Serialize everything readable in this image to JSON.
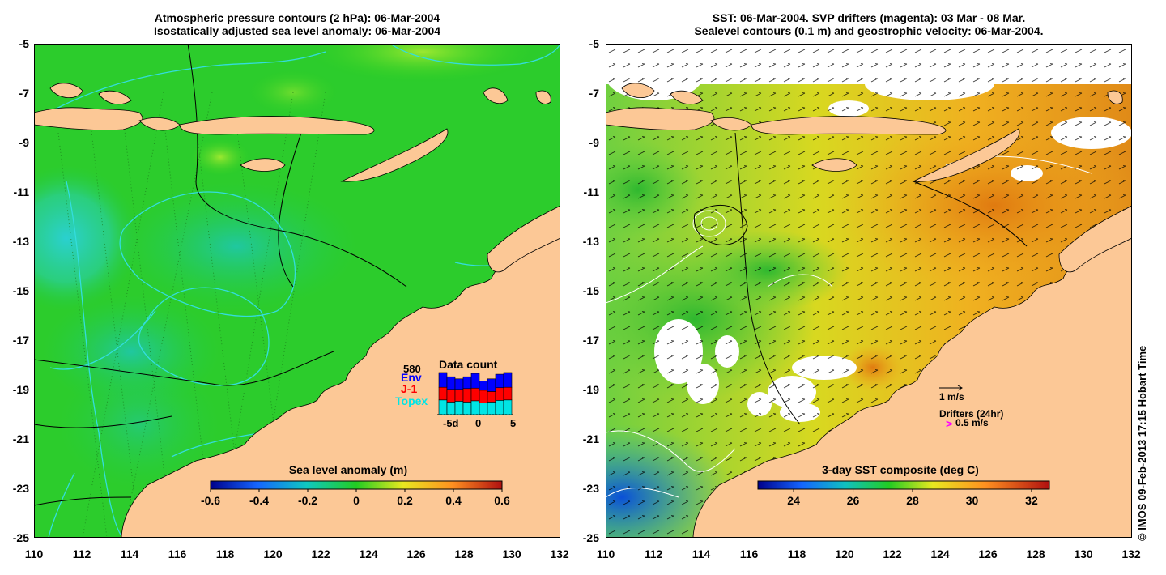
{
  "left_panel": {
    "title_line1": "Atmospheric pressure contours (2 hPa): 06-Mar-2004",
    "title_line2": "Isostatically adjusted sea level anomaly: 06-Mar-2004",
    "colorbar": {
      "label": "Sea level anomaly (m)",
      "ticks": [
        "-0.6",
        "-0.4",
        "-0.2",
        "0",
        "0.2",
        "0.4",
        "0.6"
      ]
    },
    "data_count": {
      "title": "Data count",
      "max_label": "580",
      "legend": [
        {
          "label": "Env",
          "color": "#0000ff"
        },
        {
          "label": "J-1",
          "color": "#ff0000"
        },
        {
          "label": "Topex",
          "color": "#00e5e5"
        }
      ],
      "xticks": [
        "-5d",
        "0",
        "5"
      ],
      "bars": [
        {
          "topex": 0.35,
          "j1": 0.3,
          "env": 0.35
        },
        {
          "topex": 0.3,
          "j1": 0.3,
          "env": 0.3
        },
        {
          "topex": 0.32,
          "j1": 0.28,
          "env": 0.25
        },
        {
          "topex": 0.3,
          "j1": 0.32,
          "env": 0.28
        },
        {
          "topex": 0.33,
          "j1": 0.3,
          "env": 0.35
        },
        {
          "topex": 0.28,
          "j1": 0.3,
          "env": 0.22
        },
        {
          "topex": 0.3,
          "j1": 0.25,
          "env": 0.3
        },
        {
          "topex": 0.34,
          "j1": 0.3,
          "env": 0.32
        },
        {
          "topex": 0.35,
          "j1": 0.3,
          "env": 0.35
        }
      ]
    }
  },
  "right_panel": {
    "title_line1": "SST: 06-Mar-2004. SVP drifters (magenta): 03 Mar - 08 Mar.",
    "title_line2": "Sealevel contours (0.1 m) and geostrophic velocity: 06-Mar-2004.",
    "colorbar": {
      "label": "3-day SST composite (deg C)",
      "ticks": [
        "24",
        "26",
        "28",
        "30",
        "32"
      ]
    },
    "velocity_legend": "1 m/s",
    "drifter_legend_title": "Drifters (24hr)",
    "drifter_legend_symbol": ">",
    "drifter_legend_speed": "0.5 m/s"
  },
  "axes": {
    "yticks": [
      "-5",
      "-7",
      "-9",
      "-11",
      "-13",
      "-15",
      "-17",
      "-19",
      "-21",
      "-23",
      "-25"
    ],
    "xticks": [
      "110",
      "112",
      "114",
      "116",
      "118",
      "120",
      "122",
      "124",
      "126",
      "128",
      "130",
      "132"
    ]
  },
  "credit": "© IMOS 09-Feb-2013 17:15 Hobart Time",
  "colors": {
    "land": "#fcc896",
    "ocean_green": "#22cc22",
    "contour_cyan": "#33dddd"
  }
}
